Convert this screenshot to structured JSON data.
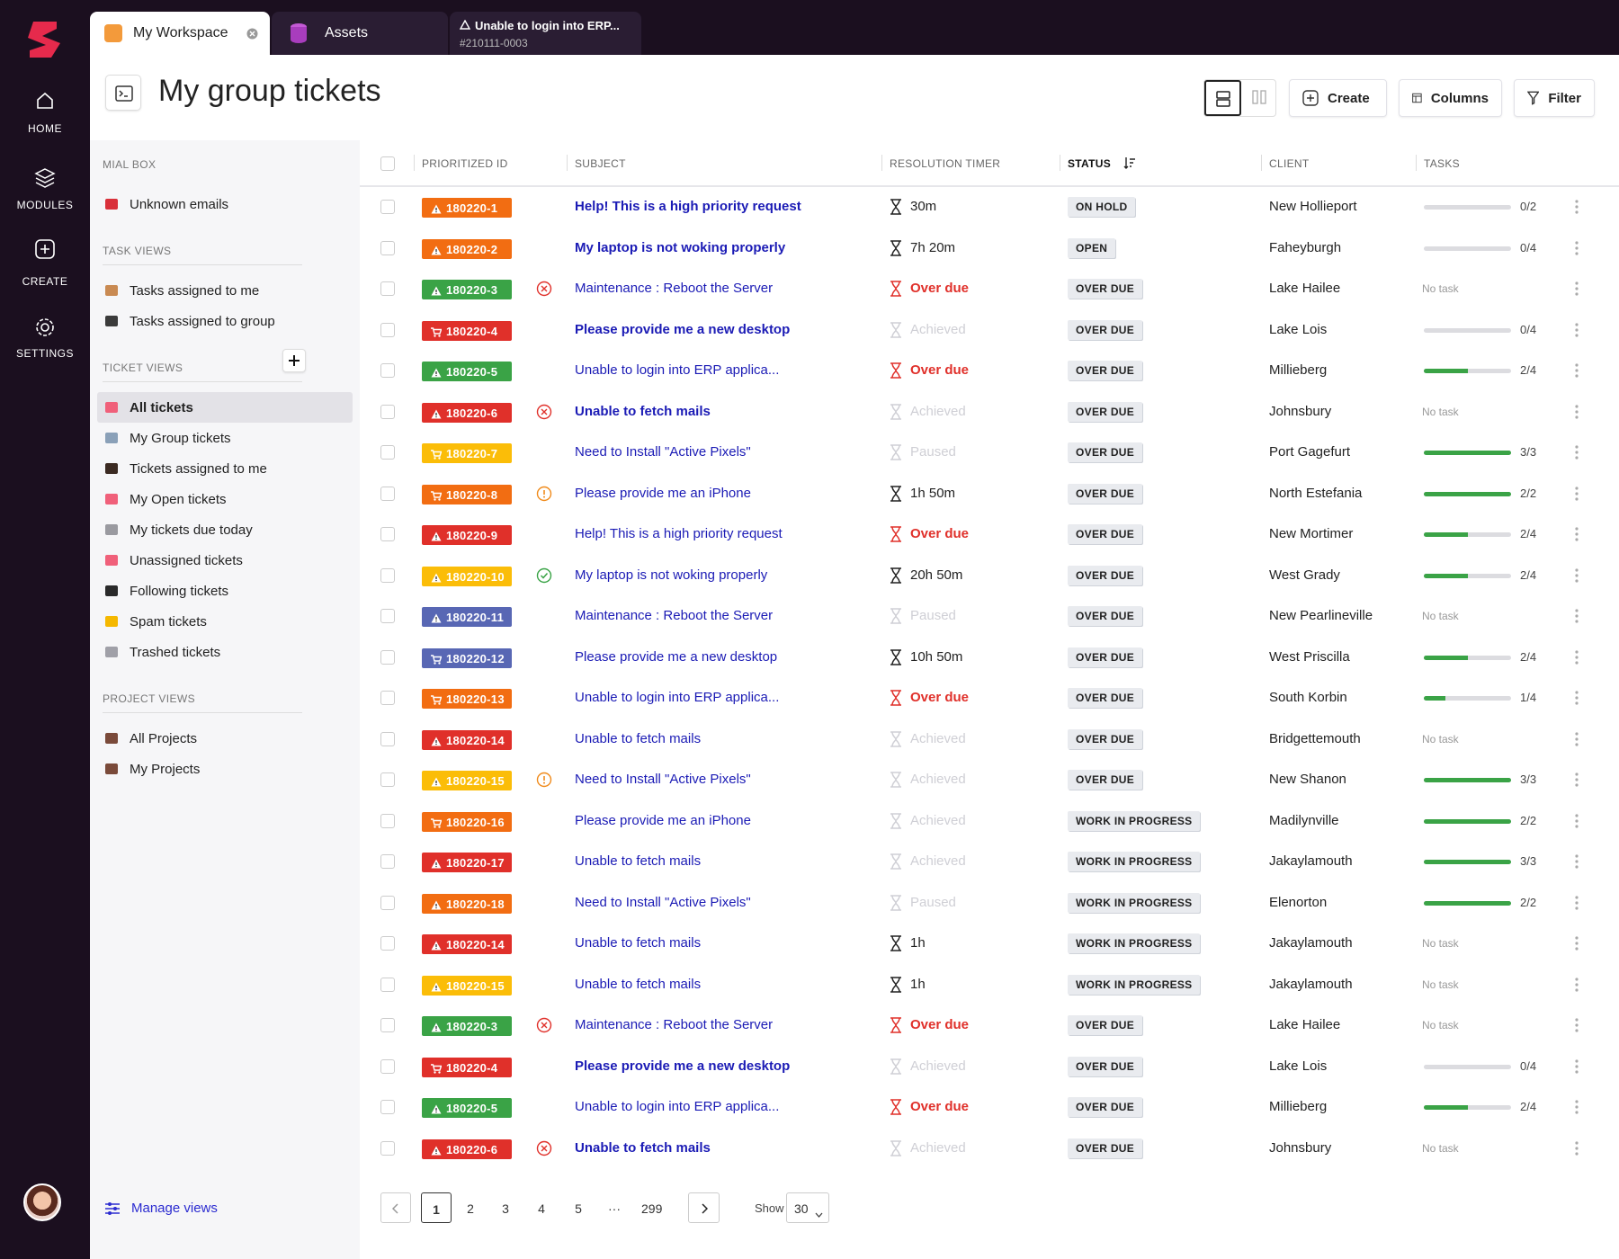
{
  "nav": {
    "items": [
      "HOME",
      "MODULES",
      "CREATE",
      "SETTINGS"
    ]
  },
  "tabs": [
    {
      "title": "My Workspace"
    },
    {
      "title": "Assets"
    },
    {
      "title": "Unable to login into ERP...",
      "subtitle": "#210111-0003"
    }
  ],
  "header": {
    "title": "My group tickets",
    "buttons": [
      "Create",
      "Columns",
      "Filter"
    ]
  },
  "sidebar": {
    "sections": [
      {
        "label": "MIAL BOX",
        "items": [
          {
            "text": "Unknown emails",
            "icon_color": "#d9303a"
          }
        ]
      },
      {
        "label": "TASK VIEWS",
        "items": [
          {
            "text": "Tasks assigned to me",
            "icon_color": "#c98a52"
          },
          {
            "text": "Tasks assigned to group",
            "icon_color": "#3b3b3b"
          }
        ]
      },
      {
        "label": "TICKET VIEWS",
        "add_button": true,
        "items": [
          {
            "text": "All tickets",
            "icon_color": "#f0607a",
            "selected": true
          },
          {
            "text": "My Group tickets",
            "icon_color": "#8aa0b8"
          },
          {
            "text": "Tickets assigned to me",
            "icon_color": "#3b2a22"
          },
          {
            "text": "My Open tickets",
            "icon_color": "#f0607a"
          },
          {
            "text": "My tickets due today",
            "icon_color": "#9a9aa0"
          },
          {
            "text": "Unassigned tickets",
            "icon_color": "#f0607a"
          },
          {
            "text": "Following tickets",
            "icon_color": "#2a2a2a"
          },
          {
            "text": "Spam tickets",
            "icon_color": "#f5b800"
          },
          {
            "text": "Trashed tickets",
            "icon_color": "#a0a0a8"
          }
        ]
      },
      {
        "label": "PROJECT VIEWS",
        "items": [
          {
            "text": "All Projects",
            "icon_color": "#7a4a3a"
          },
          {
            "text": "My Projects",
            "icon_color": "#7a4a3a"
          }
        ]
      }
    ],
    "footer": "Manage views"
  },
  "table": {
    "columns": [
      "PRIORITIZED ID",
      "SUBJECT",
      "RESOLUTION TIMER",
      "STATUS",
      "CLIENT",
      "TASKS"
    ],
    "sorted_column": 3,
    "rows": [
      {
        "id": "180220-1",
        "color": "orange",
        "badge_icon": "warning",
        "subject": "Help! This is a high priority request",
        "bold": true,
        "timer": "30m",
        "status": "ON HOLD",
        "client": "New Hollieport",
        "tasks": "0/2"
      },
      {
        "id": "180220-2",
        "color": "orange",
        "badge_icon": "warning",
        "subject": "My laptop is not woking properly",
        "bold": true,
        "timer": "7h 20m",
        "status": "OPEN",
        "client": "Faheyburgh",
        "tasks": "0/4"
      },
      {
        "id": "180220-3",
        "color": "green",
        "badge_icon": "warning",
        "mark": "x",
        "subject": "Maintenance : Reboot the Server",
        "timer": "Over due",
        "timer_state": "overdue",
        "status": "OVER DUE",
        "client": "Lake Hailee",
        "tasks": "No task"
      },
      {
        "id": "180220-4",
        "color": "red",
        "badge_icon": "cart",
        "subject": "Please provide me a new desktop",
        "bold": true,
        "timer": "Achieved",
        "timer_state": "muted",
        "status": "OVER DUE",
        "client": "Lake Lois",
        "tasks": "0/4"
      },
      {
        "id": "180220-5",
        "color": "green",
        "badge_icon": "warning",
        "subject": "Unable to login into ERP applica...",
        "timer": "Over due",
        "timer_state": "overdue",
        "status": "OVER DUE",
        "client": "Millieberg",
        "tasks": "2/4"
      },
      {
        "id": "180220-6",
        "color": "red",
        "badge_icon": "warning",
        "mark": "x",
        "subject": "Unable to fetch mails",
        "bold": true,
        "timer": "Achieved",
        "timer_state": "muted",
        "status": "OVER DUE",
        "client": "Johnsbury",
        "tasks": "No task"
      },
      {
        "id": "180220-7",
        "color": "yellow",
        "badge_icon": "cart",
        "subject": "Need to Install \"Active Pixels\"",
        "timer": "Paused",
        "timer_state": "muted",
        "status": "OVER DUE",
        "client": "Port Gagefurt",
        "tasks": "3/3"
      },
      {
        "id": "180220-8",
        "color": "orange",
        "badge_icon": "cart",
        "mark": "alert",
        "subject": "Please provide me an iPhone",
        "timer": "1h 50m",
        "status": "OVER DUE",
        "client": "North Estefania",
        "tasks": "2/2"
      },
      {
        "id": "180220-9",
        "color": "red",
        "badge_icon": "warning",
        "subject": "Help! This is a high priority request",
        "timer": "Over due",
        "timer_state": "overdue",
        "status": "OVER DUE",
        "client": "New Mortimer",
        "tasks": "2/4"
      },
      {
        "id": "180220-10",
        "color": "yellow",
        "badge_icon": "warning",
        "mark": "check",
        "subject": "My laptop is not woking properly",
        "timer": "20h 50m",
        "status": "OVER DUE",
        "client": "West Grady",
        "tasks": "2/4"
      },
      {
        "id": "180220-11",
        "color": "blue",
        "badge_icon": "warning",
        "subject": "Maintenance : Reboot the Server",
        "timer": "Paused",
        "timer_state": "muted",
        "status": "OVER DUE",
        "client": "New Pearlineville",
        "tasks": "No task"
      },
      {
        "id": "180220-12",
        "color": "blue",
        "badge_icon": "cart",
        "subject": "Please provide me a new desktop",
        "timer": "10h 50m",
        "status": "OVER DUE",
        "client": "West Priscilla",
        "tasks": "2/4"
      },
      {
        "id": "180220-13",
        "color": "orange",
        "badge_icon": "cart",
        "subject": "Unable to login into ERP applica...",
        "timer": "Over due",
        "timer_state": "overdue",
        "status": "OVER DUE",
        "client": "South Korbin",
        "tasks": "1/4"
      },
      {
        "id": "180220-14",
        "color": "red",
        "badge_icon": "warning",
        "subject": "Unable to fetch mails",
        "timer": "Achieved",
        "timer_state": "muted",
        "status": "OVER DUE",
        "client": "Bridgettemouth",
        "tasks": "No task"
      },
      {
        "id": "180220-15",
        "color": "yellow",
        "badge_icon": "warning",
        "mark": "alert",
        "subject": "Need to Install \"Active Pixels\"",
        "timer": "Achieved",
        "timer_state": "muted",
        "status": "OVER DUE",
        "client": "New Shanon",
        "tasks": "3/3"
      },
      {
        "id": "180220-16",
        "color": "orange",
        "badge_icon": "cart",
        "subject": "Please provide me an iPhone",
        "timer": "Achieved",
        "timer_state": "muted",
        "status": "WORK IN PROGRESS",
        "client": "Madilynville",
        "tasks": "2/2"
      },
      {
        "id": "180220-17",
        "color": "red",
        "badge_icon": "warning",
        "subject": "Unable to fetch mails",
        "timer": "Achieved",
        "timer_state": "muted",
        "status": "WORK IN PROGRESS",
        "client": "Jakaylamouth",
        "tasks": "3/3"
      },
      {
        "id": "180220-18",
        "color": "orange",
        "badge_icon": "warning",
        "subject": "Need to Install \"Active Pixels\"",
        "timer": "Paused",
        "timer_state": "muted",
        "status": "WORK IN PROGRESS",
        "client": "Elenorton",
        "tasks": "2/2"
      },
      {
        "id": "180220-14",
        "color": "red",
        "badge_icon": "warning",
        "subject": "Unable to fetch mails",
        "timer": "1h",
        "status": "WORK IN PROGRESS",
        "client": "Jakaylamouth",
        "tasks": "No task"
      },
      {
        "id": "180220-15",
        "color": "yellow",
        "badge_icon": "warning",
        "subject": "Unable to fetch mails",
        "timer": "1h",
        "status": "WORK IN PROGRESS",
        "client": "Jakaylamouth",
        "tasks": "No task"
      },
      {
        "id": "180220-3",
        "color": "green",
        "badge_icon": "warning",
        "mark": "x",
        "subject": "Maintenance : Reboot the Server",
        "timer": "Over due",
        "timer_state": "overdue",
        "status": "OVER DUE",
        "client": "Lake Hailee",
        "tasks": "No task"
      },
      {
        "id": "180220-4",
        "color": "red",
        "badge_icon": "cart",
        "subject": "Please provide me a new desktop",
        "bold": true,
        "timer": "Achieved",
        "timer_state": "muted",
        "status": "OVER DUE",
        "client": "Lake Lois",
        "tasks": "0/4"
      },
      {
        "id": "180220-5",
        "color": "green",
        "badge_icon": "warning",
        "subject": "Unable to login into ERP applica...",
        "timer": "Over due",
        "timer_state": "overdue",
        "status": "OVER DUE",
        "client": "Millieberg",
        "tasks": "2/4"
      },
      {
        "id": "180220-6",
        "color": "red",
        "badge_icon": "warning",
        "mark": "x",
        "subject": "Unable to fetch mails",
        "bold": true,
        "timer": "Achieved",
        "timer_state": "muted",
        "status": "OVER DUE",
        "client": "Johnsbury",
        "tasks": "No task"
      }
    ]
  },
  "pagination": {
    "pages": [
      1,
      2,
      3,
      4,
      5,
      "···",
      299
    ],
    "current_index": 0,
    "show_label": "Show",
    "page_size": 30
  }
}
